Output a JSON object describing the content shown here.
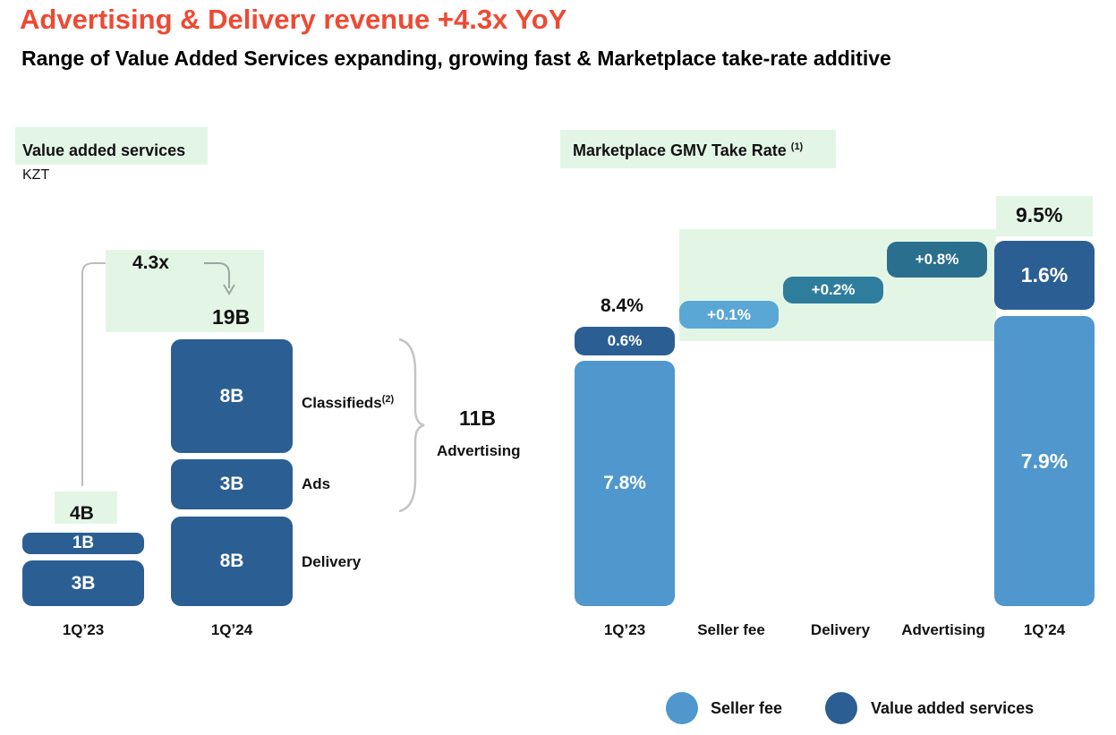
{
  "title": "Advertising & Delivery revenue +4.3x YoY",
  "subtitle": "Range of Value Added Services expanding, growing fast & Marketplace take-rate additive",
  "left_panel": {
    "heading": "Value added services",
    "unit": "KZT",
    "growth_label": "4.3x",
    "bracket_total": "11B",
    "bracket_label": "Advertising",
    "segment_labels": {
      "classifieds": "Classifieds",
      "classifieds_note": "(2)",
      "ads": "Ads",
      "delivery": "Delivery"
    }
  },
  "right_panel": {
    "heading": "Marketplace GMV Take Rate",
    "heading_note": "(1)"
  },
  "legend": {
    "seller_fee": "Seller fee",
    "vas": "Value added services"
  },
  "colors": {
    "title": "#ee4a33",
    "vas": "#2b5f93",
    "seller_fee": "#4f97cd",
    "highlight": "#e3f6e6"
  },
  "chart_data": [
    {
      "type": "bar",
      "categories": [
        "1Q’23",
        "1Q’24"
      ],
      "totals": [
        "4B",
        "19B"
      ],
      "segments": {
        "1Q’23": [
          {
            "value": "3B"
          },
          {
            "value": "1B"
          }
        ],
        "1Q’24": [
          {
            "name": "Delivery",
            "value": "8B"
          },
          {
            "name": "Ads",
            "value": "3B"
          },
          {
            "name": "Classifieds",
            "value": "8B"
          }
        ]
      },
      "values_numeric": {
        "1Q’23": [
          3,
          1
        ],
        "1Q’24": [
          8,
          3,
          8
        ]
      },
      "title": "Value added services",
      "ylabel": "KZT"
    },
    {
      "type": "bar",
      "categories": [
        "1Q’23",
        "Seller fee",
        "Delivery",
        "Advertising",
        "1Q’24"
      ],
      "start": {
        "total": "8.4%",
        "seller_fee": "7.8%",
        "vas": "0.6%"
      },
      "steps": [
        {
          "category": "Seller fee",
          "label": "+0.1%",
          "value": 0.1
        },
        {
          "category": "Delivery",
          "label": "+0.2%",
          "value": 0.2
        },
        {
          "category": "Advertising",
          "label": "+0.8%",
          "value": 0.8
        }
      ],
      "end": {
        "total": "9.5%",
        "seller_fee": "7.9%",
        "vas": "1.6%"
      },
      "title": "Marketplace GMV Take Rate"
    }
  ]
}
